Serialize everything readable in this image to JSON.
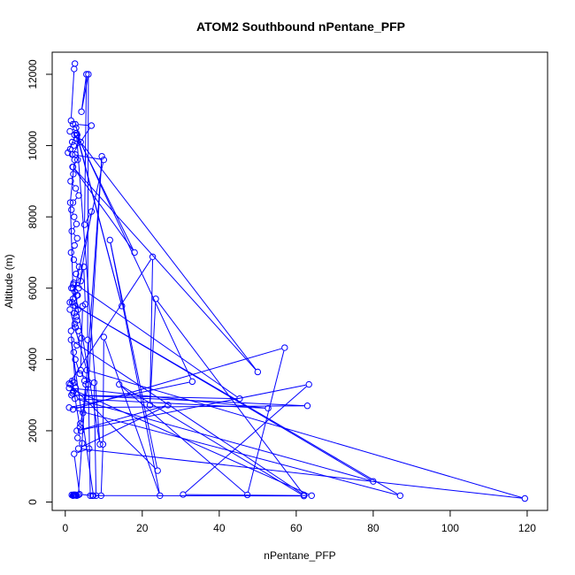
{
  "chart_data": {
    "type": "line",
    "title": "ATOM2 Southbound nPentane_PFP",
    "xlabel": "nPentane_PFP",
    "ylabel": "Altitude (m)",
    "xlim": [
      -3.4,
      125.3
    ],
    "ylim": [
      -235,
      12620
    ],
    "xticks": [
      0,
      20,
      40,
      60,
      80,
      100,
      120
    ],
    "yticks": [
      0,
      2000,
      4000,
      6000,
      8000,
      10000,
      12000
    ],
    "colors": {
      "series": "#0000ff",
      "axis": "#000000",
      "background": "#ffffff"
    },
    "grid": false,
    "series": [
      {
        "x": [
          2.5,
          2.3,
          1.5,
          2.0,
          2.8,
          1.2,
          2.4,
          3.0,
          1.8,
          2.2,
          1.3,
          2.6,
          3.2,
          1.9,
          2.1,
          1.4,
          2.7,
          3.5,
          2.0,
          1.6,
          2.3,
          2.9,
          1.7,
          3.1,
          2.4,
          1.5,
          2.2,
          3.6,
          2.8,
          4.0,
          2.1,
          1.6,
          2.5,
          3.0,
          2.0,
          1.8,
          2.6,
          3.3,
          2.4,
          2.9,
          3.1,
          2.5,
          2.7,
          3.4,
          4.2,
          3.0,
          2.2,
          2.6,
          3.8,
          7.5,
          8.0,
          6.5,
          5.8,
          6.0,
          4.2,
          5.5,
          5.0,
          6.8,
          3.5,
          4.8,
          5.2,
          4.5,
          4.0,
          5.0,
          5.3,
          4.6,
          3.9,
          4.1,
          3.2,
          4.4,
          6.2,
          2.3,
          3.7,
          7.0,
          9.3,
          9.8,
          10.0,
          24.6,
          11.6,
          24.0,
          1.0,
          22.7,
          22.0,
          23.5,
          62.0,
          1.5,
          7.3,
          62.0,
          14.0,
          47.3,
          57.0,
          2.0,
          87.0,
          1.2,
          80.0,
          2.5,
          52.7,
          1.0,
          64.0,
          30.6,
          63.3,
          3.0,
          26.7,
          3.4,
          119.4,
          5.6,
          1.2,
          10.0,
          1.8,
          6.8,
          2.6,
          4.0,
          50.0,
          2.0,
          18.0,
          3.0,
          14.7,
          3.1,
          33.0,
          1.0,
          62.9,
          1.6,
          45.3,
          2.2,
          9.0,
          2.9,
          0.7,
          2.4,
          1.3,
          2.0,
          3.2,
          1.5,
          2.7,
          2.1,
          1.9,
          1.4,
          2.3,
          1.8,
          3.8,
          6.0,
          9.5,
          3.4,
          2.8,
          2.3,
          2.6,
          2.0,
          1.7,
          2.5,
          2.2,
          2.4,
          3.0,
          2.6,
          2.1
        ],
        "y": [
          12300,
          12150,
          10700,
          10600,
          10500,
          10400,
          10300,
          10200,
          10100,
          10000,
          9900,
          9750,
          9600,
          9400,
          9200,
          9000,
          8800,
          8600,
          8400,
          8200,
          8000,
          7800,
          7600,
          7400,
          7200,
          7000,
          6800,
          6600,
          6400,
          6200,
          6100,
          6000,
          5900,
          5800,
          5700,
          5600,
          5500,
          5400,
          5300,
          5200,
          5100,
          5000,
          4900,
          4800,
          4600,
          4400,
          4200,
          4000,
          3600,
          3350,
          180,
          180,
          4550,
          12000,
          10950,
          12000,
          7780,
          8150,
          6000,
          6600,
          5550,
          5500,
          3700,
          3400,
          3300,
          2500,
          2200,
          2000,
          1800,
          1650,
          1500,
          1350,
          220,
          180,
          180,
          1620,
          4630,
          180,
          7350,
          880,
          3320,
          6880,
          2720,
          5700,
          200,
          4550,
          180,
          170,
          3300,
          200,
          4330,
          2600,
          180,
          5600,
          580,
          2900,
          2630,
          3200,
          180,
          210,
          3300,
          2000,
          2720,
          1500,
          100,
          3700,
          5400,
          9600,
          9750,
          10560,
          10600,
          10100,
          3650,
          9400,
          7000,
          10300,
          5500,
          10300,
          3380,
          2650,
          2700,
          3000,
          2900,
          6150,
          1620,
          10350,
          9800,
          9600,
          8400,
          6000,
          5800,
          4800,
          3200,
          3100,
          3050,
          3300,
          3350,
          3400,
          2100,
          3300,
          9700,
          200,
          200,
          200,
          200,
          180,
          200,
          190,
          200,
          200,
          180,
          190,
          200
        ]
      }
    ]
  }
}
